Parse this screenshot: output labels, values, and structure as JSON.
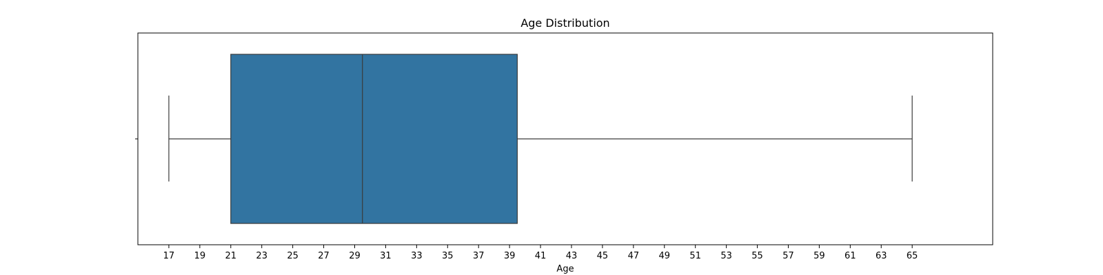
{
  "chart_data": {
    "type": "box",
    "title": "Age Distribution",
    "xlabel": "Age",
    "ylabel": "",
    "xlim": [
      15,
      70.2
    ],
    "x_ticks": [
      17,
      19,
      21,
      23,
      25,
      27,
      29,
      31,
      33,
      35,
      37,
      39,
      41,
      43,
      45,
      47,
      49,
      51,
      53,
      55,
      57,
      59,
      61,
      63,
      65
    ],
    "grid": false,
    "box": {
      "whisker_low": 17,
      "q1": 21,
      "median": 29.5,
      "q3": 39.5,
      "whisker_high": 65,
      "color": "#3274a1",
      "edge_color": "#3a3a3a"
    }
  }
}
